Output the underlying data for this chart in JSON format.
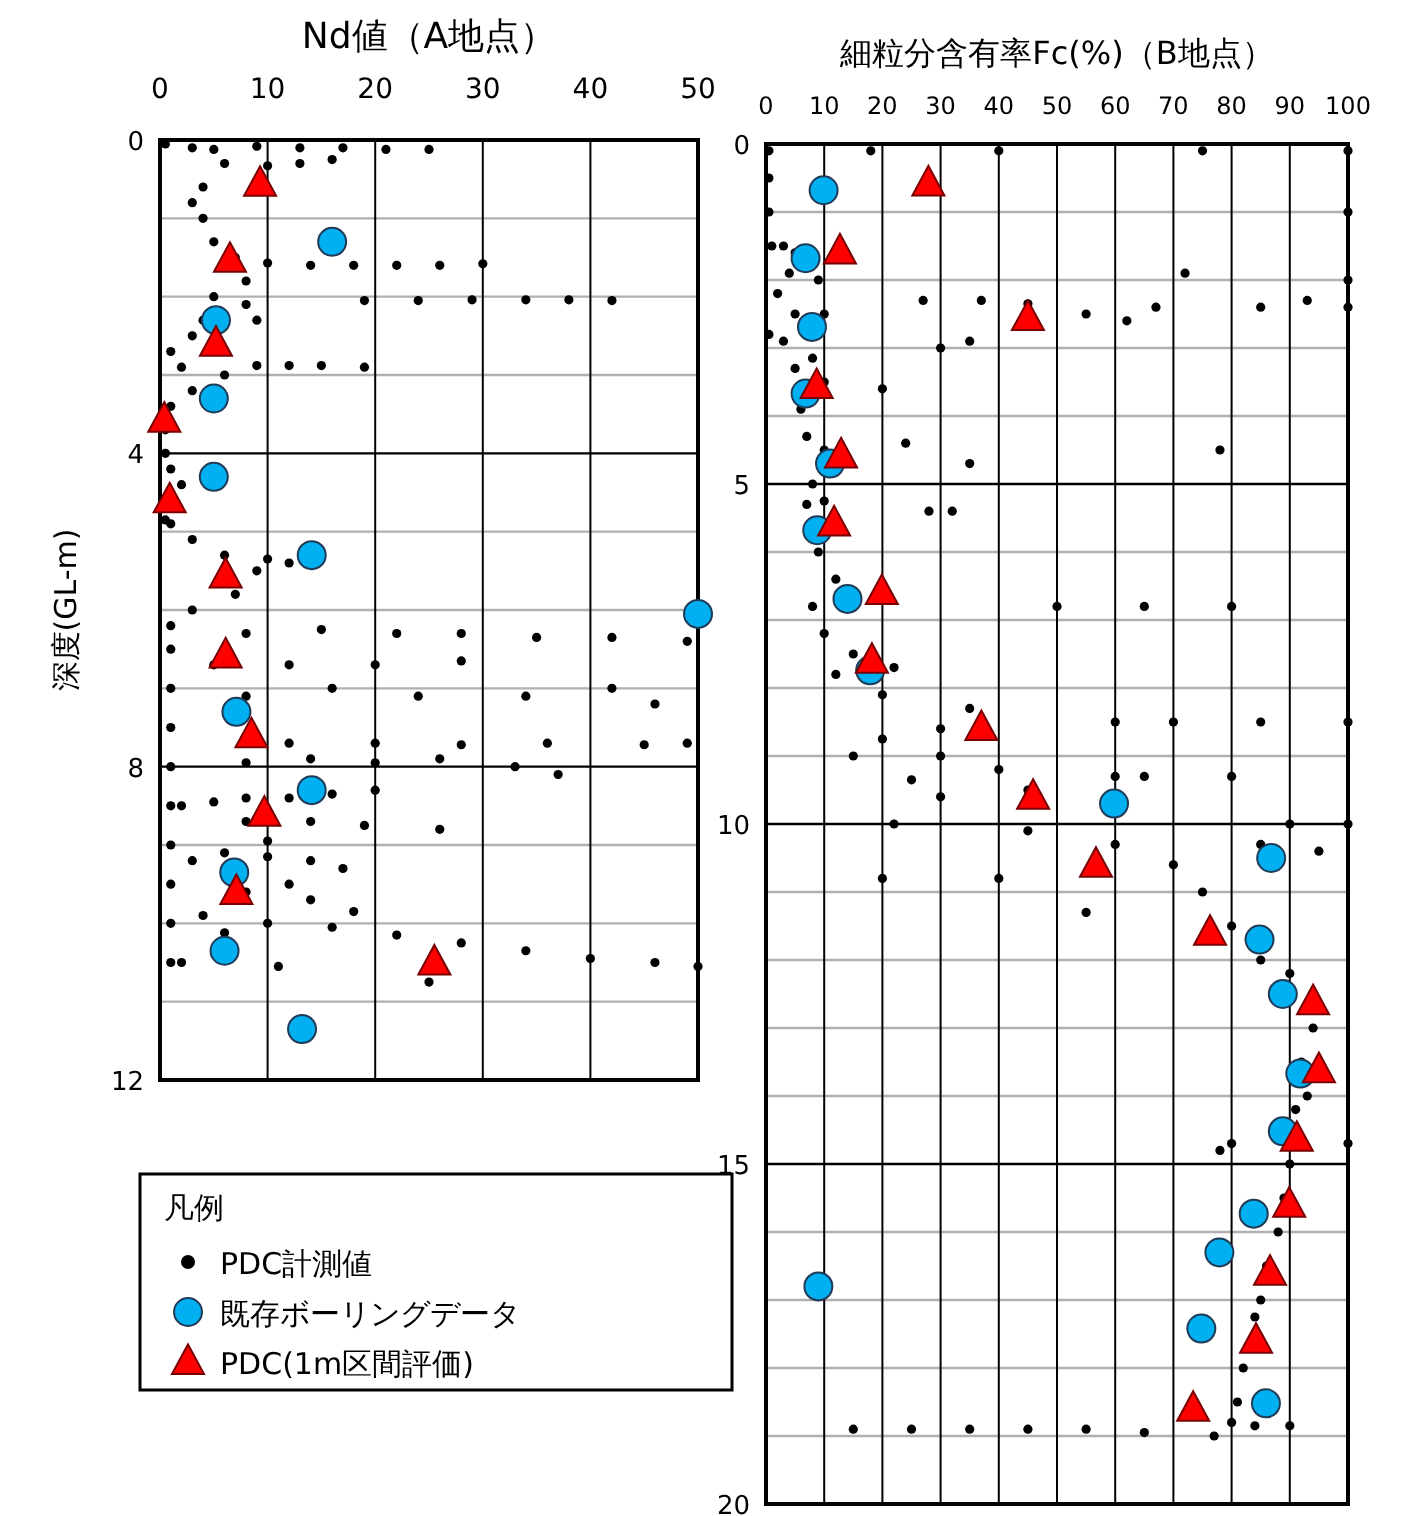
{
  "chart_data": [
    {
      "type": "scatter",
      "title": "Nd値（A地点）",
      "ylabel": "深度(GL-m)",
      "xlim": [
        0,
        50
      ],
      "xticks": [
        0,
        10,
        20,
        30,
        40,
        50
      ],
      "ylim": [
        12,
        0
      ],
      "yticks": [
        0,
        {
          "value": 1,
          "label": null
        },
        {
          "value": 2,
          "label": null
        },
        {
          "value": 3,
          "label": null
        },
        4,
        {
          "value": 5,
          "label": null
        },
        {
          "value": 6,
          "label": null
        },
        {
          "value": 7,
          "label": null
        },
        8,
        {
          "value": 9,
          "label": null
        },
        {
          "value": 10,
          "label": null
        },
        {
          "value": 11,
          "label": null
        },
        12
      ],
      "grid": true,
      "legend": "bottom left",
      "legend_title": "凡例",
      "series": [
        {
          "name": "PDC計測値",
          "color": "#000000",
          "marker": "circle",
          "x": [
            0.5,
            3,
            6,
            4,
            3,
            4,
            5,
            7,
            8,
            5,
            4,
            3,
            1,
            2,
            6,
            3,
            1,
            0.5,
            0.5,
            1,
            2,
            0.5,
            1,
            3,
            6,
            9,
            7,
            3,
            1,
            1,
            1,
            1,
            1,
            1,
            1,
            1,
            1,
            1,
            5,
            9,
            13,
            17,
            21,
            25,
            10,
            13,
            16,
            10,
            14,
            18,
            22,
            26,
            30,
            19,
            24,
            29,
            34,
            38,
            42,
            8,
            9,
            9,
            12,
            15,
            19,
            10,
            12,
            8,
            15,
            22,
            28,
            35,
            42,
            49,
            5,
            12,
            20,
            28,
            8,
            16,
            24,
            34,
            42,
            46,
            12,
            20,
            28,
            36,
            45,
            49,
            8,
            14,
            20,
            26,
            33,
            37,
            2,
            5,
            8,
            12,
            16,
            20,
            8,
            14,
            19,
            26,
            10,
            3,
            6,
            10,
            14,
            17,
            12,
            8,
            14,
            18,
            4,
            10,
            16,
            22,
            28,
            34,
            40,
            46,
            50,
            25,
            2,
            6,
            11
          ],
          "values": [
            0.05,
            0.1,
            0.3,
            0.6,
            0.8,
            1.0,
            1.3,
            1.5,
            1.8,
            2.0,
            2.3,
            2.5,
            2.7,
            2.9,
            3.0,
            3.2,
            3.4,
            3.7,
            4.0,
            4.2,
            4.4,
            4.85,
            4.9,
            5.1,
            5.3,
            5.5,
            5.8,
            6.0,
            6.2,
            6.5,
            7.0,
            7.5,
            8.0,
            8.5,
            9.0,
            9.5,
            10.0,
            10.5,
            0.12,
            0.08,
            0.1,
            0.1,
            0.12,
            0.12,
            0.33,
            0.3,
            0.25,
            1.57,
            1.6,
            1.6,
            1.6,
            1.6,
            1.58,
            2.05,
            2.05,
            2.04,
            2.04,
            2.04,
            2.05,
            2.1,
            2.3,
            2.88,
            2.88,
            2.88,
            2.9,
            5.35,
            5.4,
            6.3,
            6.25,
            6.3,
            6.3,
            6.35,
            6.35,
            6.4,
            6.7,
            6.7,
            6.7,
            6.65,
            7.1,
            7.0,
            7.1,
            7.1,
            7.0,
            7.2,
            7.7,
            7.7,
            7.72,
            7.7,
            7.72,
            7.7,
            7.95,
            7.9,
            7.95,
            7.9,
            8.0,
            8.1,
            8.5,
            8.45,
            8.4,
            8.4,
            8.35,
            8.3,
            8.7,
            8.7,
            8.75,
            8.8,
            8.95,
            9.2,
            9.1,
            9.15,
            9.2,
            9.3,
            9.5,
            9.6,
            9.7,
            9.85,
            9.9,
            10.0,
            10.05,
            10.15,
            10.25,
            10.35,
            10.45,
            10.5,
            10.55,
            10.75,
            10.5,
            10.12,
            10.55
          ]
        },
        {
          "name": "既存ボーリングデータ",
          "color": "#00b0f0",
          "marker": "circle",
          "x": [
            16,
            5.2,
            5,
            5,
            14.1,
            50,
            7.1,
            14.1,
            6.9,
            6,
            13.2
          ],
          "values": [
            1.3,
            2.3,
            3.3,
            4.3,
            5.3,
            6.05,
            7.3,
            8.3,
            9.35,
            10.35,
            11.35
          ]
        },
        {
          "name": "PDC(1m区間評価)",
          "color": "#ff0000",
          "marker": "triangle",
          "x": [
            9.3,
            6.5,
            5.2,
            0.4,
            0.9,
            6.1,
            6.1,
            8.5,
            9.7,
            7.1,
            25.5
          ],
          "values": [
            0.56,
            1.53,
            2.6,
            3.57,
            4.6,
            5.56,
            6.58,
            7.6,
            8.6,
            9.6,
            10.5
          ]
        }
      ]
    },
    {
      "type": "scatter",
      "title": "細粒分含有率Fc(%)（B地点）",
      "xlim": [
        0,
        100
      ],
      "xticks": [
        0,
        10,
        20,
        30,
        40,
        50,
        60,
        70,
        80,
        90,
        100
      ],
      "ylim": [
        20,
        0
      ],
      "yticks": [
        0,
        {
          "value": 1,
          "label": null
        },
        {
          "value": 2,
          "label": null
        },
        {
          "value": 3,
          "label": null
        },
        {
          "value": 4,
          "label": null
        },
        5,
        {
          "value": 6,
          "label": null
        },
        {
          "value": 7,
          "label": null
        },
        {
          "value": 8,
          "label": null
        },
        {
          "value": 9,
          "label": null
        },
        10,
        {
          "value": 11,
          "label": null
        },
        {
          "value": 12,
          "label": null
        },
        {
          "value": 13,
          "label": null
        },
        {
          "value": 14,
          "label": null
        },
        15,
        {
          "value": 16,
          "label": null
        },
        {
          "value": 17,
          "label": null
        },
        {
          "value": 18,
          "label": null
        },
        {
          "value": 19,
          "label": null
        },
        20
      ],
      "grid": true,
      "series": [
        {
          "color": "#000000",
          "marker": "circle",
          "x": [
            0.5,
            0.5,
            0.5,
            1,
            3,
            5,
            4,
            9,
            2,
            5,
            10,
            0.5,
            3,
            5,
            8,
            6,
            10,
            7,
            10,
            8,
            7,
            10,
            9,
            12,
            8,
            10,
            15,
            22,
            12,
            20,
            35,
            30,
            20,
            15,
            30,
            40,
            25,
            45,
            30,
            22,
            45,
            60,
            70,
            75,
            80,
            85,
            90,
            94,
            92,
            93,
            91,
            90,
            89,
            88,
            86,
            85,
            84,
            82,
            81,
            80,
            15,
            25,
            35,
            45,
            55,
            65,
            77,
            84,
            90,
            100,
            100,
            100,
            100,
            75,
            18,
            40,
            72,
            85,
            93,
            67,
            27,
            37,
            45,
            55,
            62,
            30,
            35,
            20,
            24,
            78,
            35,
            32,
            28,
            50,
            65,
            80,
            100,
            60,
            70,
            85,
            60,
            65,
            80,
            100,
            90,
            95,
            85,
            20,
            40,
            55,
            100,
            80,
            78
          ],
          "values": [
            0.1,
            0.5,
            1.0,
            1.5,
            1.5,
            1.6,
            1.9,
            2.0,
            2.2,
            2.5,
            2.5,
            2.8,
            2.9,
            3.3,
            3.15,
            3.9,
            3.5,
            4.3,
            4.5,
            5.0,
            5.3,
            5.25,
            6.0,
            6.4,
            6.8,
            7.2,
            7.5,
            7.7,
            7.8,
            8.1,
            8.3,
            8.6,
            8.75,
            9.0,
            9.0,
            9.2,
            9.35,
            9.5,
            9.6,
            10.0,
            10.1,
            10.3,
            10.6,
            11.0,
            11.5,
            12.0,
            12.2,
            13.0,
            13.5,
            14.0,
            14.2,
            15.0,
            15.5,
            16.0,
            16.5,
            17.0,
            17.25,
            18.0,
            18.5,
            18.8,
            18.9,
            18.9,
            18.9,
            18.9,
            18.9,
            18.95,
            19.0,
            18.85,
            18.85,
            0.1,
            1.0,
            2.0,
            2.4,
            0.1,
            0.1,
            0.1,
            1.9,
            2.4,
            2.3,
            2.4,
            2.3,
            2.3,
            2.35,
            2.5,
            2.6,
            3.0,
            2.9,
            3.6,
            4.4,
            4.5,
            4.7,
            5.4,
            5.4,
            6.8,
            6.8,
            6.8,
            8.5,
            8.5,
            8.5,
            8.5,
            9.3,
            9.3,
            9.3,
            10.0,
            10.0,
            10.4,
            10.3,
            10.8,
            10.8,
            11.3,
            14.7,
            14.7,
            14.8
          ]
        },
        {
          "color": "#00b0f0",
          "marker": "circle",
          "x": [
            9.9,
            6.8,
            7.9,
            6.8,
            11,
            8.8,
            14,
            17.9,
            59.8,
            86.8,
            84.8,
            88.8,
            91.8,
            88.8,
            83.8,
            77.9,
            9,
            74.8,
            85.9
          ],
          "values": [
            0.68,
            1.68,
            2.69,
            3.67,
            4.7,
            5.68,
            6.69,
            7.74,
            9.7,
            10.5,
            11.7,
            12.5,
            13.67,
            14.52,
            15.73,
            16.3,
            16.8,
            17.42,
            18.52
          ]
        },
        {
          "color": "#ff0000",
          "marker": "triangle",
          "x": [
            27.9,
            12.7,
            45,
            8.7,
            12.9,
            11.7,
            19.9,
            18.2,
            37,
            45.9,
            56.7,
            76.3,
            94,
            95,
            91.2,
            89.9,
            86.6,
            84.2,
            73.4
          ],
          "values": [
            0.58,
            1.58,
            2.56,
            3.56,
            4.58,
            5.58,
            6.59,
            7.6,
            8.59,
            9.6,
            10.6,
            11.6,
            12.62,
            13.62,
            14.63,
            15.6,
            16.6,
            17.6,
            18.6
          ]
        }
      ]
    }
  ]
}
